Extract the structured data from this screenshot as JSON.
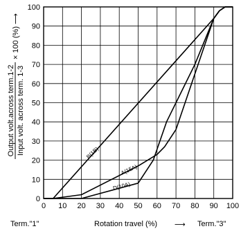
{
  "chart_data": {
    "type": "line",
    "title": "",
    "xlabel": "Rotation travel (%)",
    "xlabel_arrow": "⟶",
    "x_end_labels": {
      "left": "Term.\"1\"",
      "right": "Term.\"3\""
    },
    "ylabel": {
      "numerator": "Output volt.across term.1-2",
      "denominator": "Input volt. across term. 1-3",
      "multiplier": "× 100 (%)",
      "arrow": "⟶"
    },
    "xlim": [
      0,
      100
    ],
    "ylim": [
      0,
      100
    ],
    "xticks": [
      "0",
      "10",
      "20",
      "30",
      "40",
      "50",
      "60",
      "70",
      "80",
      "90",
      "100"
    ],
    "yticks": [
      "0",
      "10",
      "20",
      "30",
      "40",
      "50",
      "60",
      "70",
      "80",
      "90",
      "100"
    ],
    "grid": true,
    "series": [
      {
        "name": "B(1B)",
        "x": [
          0,
          5,
          90,
          93,
          96,
          100
        ],
        "y": [
          0,
          0,
          94,
          98,
          100,
          100
        ]
      },
      {
        "name": "A(15A)",
        "x": [
          0,
          5,
          20,
          40,
          50,
          60,
          64,
          70,
          80,
          90,
          93,
          96,
          100
        ],
        "y": [
          0,
          0,
          2,
          12,
          17,
          23,
          27,
          36,
          65,
          94,
          98,
          100,
          100
        ]
      },
      {
        "name": "D(10A)",
        "x": [
          0,
          5,
          20,
          50,
          58,
          65,
          80,
          90,
          93,
          96,
          100
        ],
        "y": [
          0,
          0,
          0,
          8,
          20,
          40,
          70,
          94,
          98,
          100,
          100
        ]
      }
    ]
  }
}
